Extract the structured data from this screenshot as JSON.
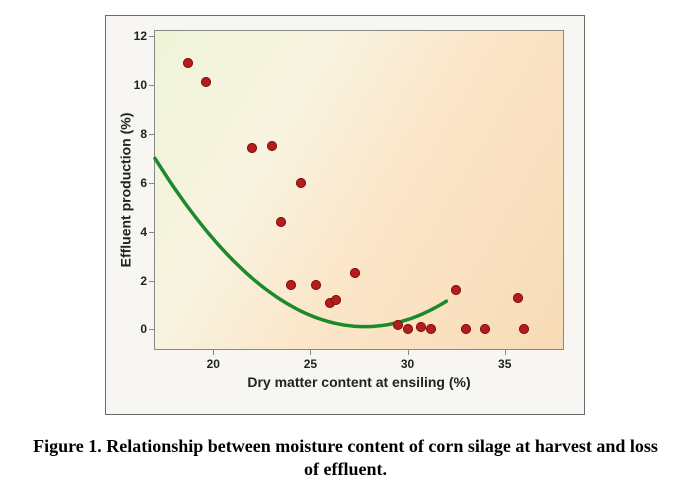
{
  "figure": {
    "caption": "Figure 1.  Relationship between moisture content of corn silage at harvest and loss of effluent.",
    "caption_fontsize": 18,
    "caption_font": "Times New Roman",
    "outer_border_color": "#6a6a6a",
    "outer_bg": "#f7f6f3",
    "chart": {
      "type": "scatter",
      "xlabel": "Dry matter content at ensiling (%)",
      "ylabel": "Effluent production (%)",
      "label_fontsize": 14,
      "tick_fontsize": 12,
      "xlim": [
        17,
        38
      ],
      "ylim": [
        -0.8,
        12.2
      ],
      "xticks": [
        20,
        25,
        30,
        35
      ],
      "yticks": [
        0,
        2,
        4,
        6,
        8,
        10,
        12
      ],
      "plot_border_color": "#888888",
      "gradient_colors": [
        "#eef4d8",
        "#f8f3e0",
        "#fbe6c9",
        "#f8dbb6"
      ],
      "points": [
        {
          "x": 18.7,
          "y": 10.9
        },
        {
          "x": 19.6,
          "y": 10.1
        },
        {
          "x": 22.0,
          "y": 7.4
        },
        {
          "x": 23.0,
          "y": 7.5
        },
        {
          "x": 23.5,
          "y": 4.4
        },
        {
          "x": 24.0,
          "y": 1.8
        },
        {
          "x": 24.5,
          "y": 6.0
        },
        {
          "x": 25.3,
          "y": 1.8
        },
        {
          "x": 26.0,
          "y": 1.1
        },
        {
          "x": 26.3,
          "y": 1.2
        },
        {
          "x": 27.3,
          "y": 2.3
        },
        {
          "x": 29.5,
          "y": 0.2
        },
        {
          "x": 30.0,
          "y": 0.0
        },
        {
          "x": 30.7,
          "y": 0.1
        },
        {
          "x": 31.2,
          "y": 0.0
        },
        {
          "x": 32.5,
          "y": 1.6
        },
        {
          "x": 33.0,
          "y": 0.0
        },
        {
          "x": 34.0,
          "y": 0.0
        },
        {
          "x": 35.7,
          "y": 1.3
        },
        {
          "x": 36.0,
          "y": 0.0
        }
      ],
      "marker": {
        "size": 10,
        "color": "#b51d1d",
        "border_color": "#7e1010",
        "border_width": 1
      },
      "curve": {
        "color": "#1a8a2a",
        "width": 3.5,
        "a": 0.059,
        "b": -3.28,
        "c": 45.7,
        "x_start": 17,
        "x_end": 32
      }
    }
  }
}
